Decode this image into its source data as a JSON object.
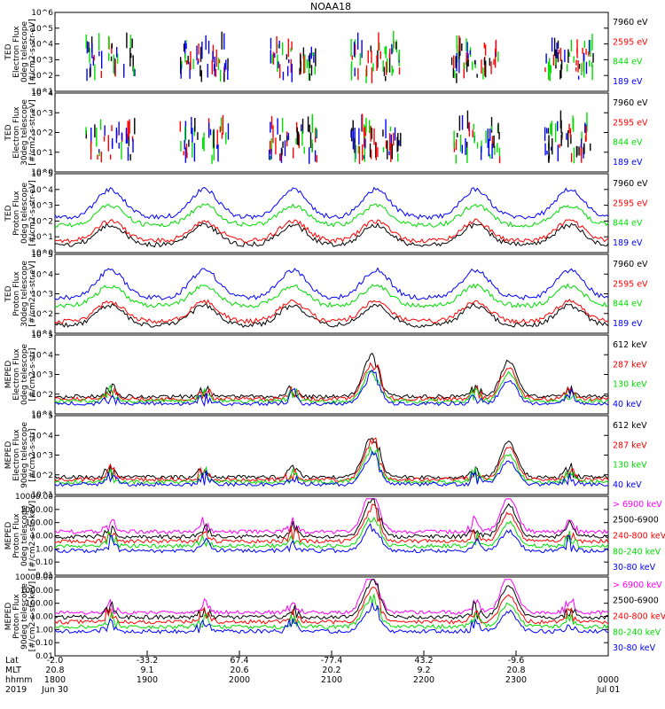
{
  "title": "NOAA18",
  "colors": {
    "black": "#000000",
    "red": "#ff0000",
    "green": "#00dd00",
    "blue": "#0000ff",
    "magenta": "#ff00ff"
  },
  "chart_data": [
    {
      "type": "scatter",
      "ylabel_lines": [
        "TED",
        "Electron Flux",
        "0deg telescope",
        "[#/cm2-s-str-eV]"
      ],
      "ylog": true,
      "yticks": [
        "10^1",
        "10^2",
        "10^3",
        "10^4",
        "10^5",
        "10^6"
      ],
      "legend": [
        {
          "label": "7960 eV",
          "color": "black"
        },
        {
          "label": "2595 eV",
          "color": "red"
        },
        {
          "label": "844 eV",
          "color": "green"
        },
        {
          "label": "189 eV",
          "color": "blue"
        }
      ]
    },
    {
      "type": "scatter",
      "ylabel_lines": [
        "TED",
        "Electron Flux",
        "30deg telescope",
        "[#/cm2-s-str-eV]"
      ],
      "ylog": true,
      "yticks": [
        "10^0",
        "10^1",
        "10^2",
        "10^3",
        "10^4"
      ],
      "legend": [
        {
          "label": "7960 eV",
          "color": "black"
        },
        {
          "label": "2595 eV",
          "color": "red"
        },
        {
          "label": "844 eV",
          "color": "green"
        },
        {
          "label": "189 eV",
          "color": "blue"
        }
      ]
    },
    {
      "type": "line",
      "ylabel_lines": [
        "TED",
        "Proton Flux",
        "0deg telescope",
        "[#/cm2-s-str-eV]"
      ],
      "ylog": true,
      "yticks": [
        "10^0",
        "10^1",
        "10^2",
        "10^3",
        "10^4",
        "10^5"
      ],
      "legend": [
        {
          "label": "7960 eV",
          "color": "black"
        },
        {
          "label": "2595 eV",
          "color": "red"
        },
        {
          "label": "844 eV",
          "color": "green"
        },
        {
          "label": "189 eV",
          "color": "blue"
        }
      ]
    },
    {
      "type": "line",
      "ylabel_lines": [
        "TED",
        "Proton Flux",
        "30deg telescope",
        "[#/cm2-s-str-eV]"
      ],
      "ylog": true,
      "yticks": [
        "10^1",
        "10^2",
        "10^3",
        "10^4",
        "10^5"
      ],
      "legend": [
        {
          "label": "7960 eV",
          "color": "black"
        },
        {
          "label": "2595 eV",
          "color": "red"
        },
        {
          "label": "844 eV",
          "color": "green"
        },
        {
          "label": "189 eV",
          "color": "blue"
        }
      ]
    },
    {
      "type": "line",
      "ylabel_lines": [
        "MEPED",
        "Electron Flux",
        "0deg telescope",
        "[#/cm2-s-str]"
      ],
      "ylog": true,
      "yticks": [
        "10^1",
        "10^2",
        "10^3",
        "10^4",
        "10^5"
      ],
      "legend": [
        {
          "label": "612 keV",
          "color": "black"
        },
        {
          "label": "287 keV",
          "color": "red"
        },
        {
          "label": "130 keV",
          "color": "green"
        },
        {
          "label": "40 keV",
          "color": "blue"
        }
      ]
    },
    {
      "type": "line",
      "ylabel_lines": [
        "MEPED",
        "Electron Flux",
        "90deg telescope",
        "[#/cm2-s-str]"
      ],
      "ylog": true,
      "yticks": [
        "10^1",
        "10^2",
        "10^3",
        "10^4",
        "10^5"
      ],
      "legend": [
        {
          "label": "612 keV",
          "color": "black"
        },
        {
          "label": "287 keV",
          "color": "red"
        },
        {
          "label": "130 keV",
          "color": "green"
        },
        {
          "label": "40 keV",
          "color": "blue"
        }
      ]
    },
    {
      "type": "line",
      "ylabel_lines": [
        "MEPED",
        "Proton Flux",
        "0deg telescope",
        "[#/cm2-s-str-keV]"
      ],
      "ylog": true,
      "yticks": [
        "0.01",
        "0.10",
        "1.00",
        "10.00",
        "100.00",
        "1000.00",
        "10000.00"
      ],
      "legend": [
        {
          "label": "> 6900 keV",
          "color": "magenta"
        },
        {
          "label": "2500-6900",
          "color": "black"
        },
        {
          "label": "240-800 keV",
          "color": "red"
        },
        {
          "label": "80-240 keV",
          "color": "green"
        },
        {
          "label": "30-80 keV",
          "color": "blue"
        }
      ]
    },
    {
      "type": "line",
      "ylabel_lines": [
        "MEPED",
        "Proton Flux",
        "90deg telescope",
        "[#/cm2-s-str-keV]"
      ],
      "ylog": true,
      "yticks": [
        "0.01",
        "0.10",
        "1.00",
        "10.00",
        "100.00",
        "1000.00",
        "10000.00"
      ],
      "legend": [
        {
          "label": "> 6900 keV",
          "color": "magenta"
        },
        {
          "label": "2500-6900",
          "color": "black"
        },
        {
          "label": "240-800 keV",
          "color": "red"
        },
        {
          "label": "80-240 keV",
          "color": "green"
        },
        {
          "label": "30-80 keV",
          "color": "blue"
        }
      ]
    }
  ],
  "xaxis": {
    "row_labels": [
      "Lat",
      "MLT",
      "hhmm",
      "2019"
    ],
    "ticks": [
      {
        "lat": "-2.0",
        "mlt": "20.8",
        "hhmm": "1800",
        "date": "Jun 30"
      },
      {
        "lat": "-33.2",
        "mlt": "9.1",
        "hhmm": "1900",
        "date": ""
      },
      {
        "lat": "67.4",
        "mlt": "20.6",
        "hhmm": "2000",
        "date": ""
      },
      {
        "lat": "-77.4",
        "mlt": "20.2",
        "hhmm": "2100",
        "date": ""
      },
      {
        "lat": "43.2",
        "mlt": "9.2",
        "hhmm": "2200",
        "date": ""
      },
      {
        "lat": "-9.6",
        "mlt": "20.8",
        "hhmm": "2300",
        "date": ""
      },
      {
        "lat": "",
        "mlt": "",
        "hhmm": "0000",
        "date": "Jul 01"
      }
    ]
  }
}
